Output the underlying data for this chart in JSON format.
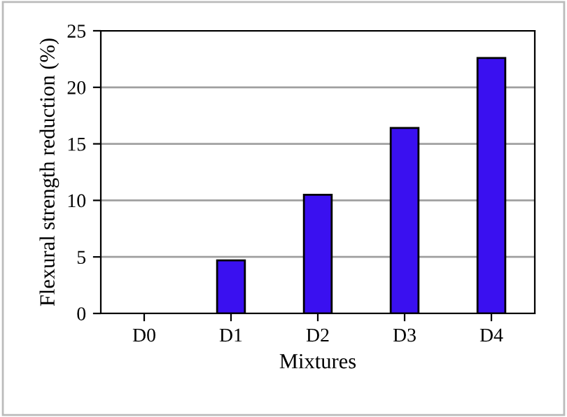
{
  "chart_data": {
    "type": "bar",
    "xlabel": "Mixtures",
    "ylabel": "Flexural strength reduction (%)",
    "categories": [
      "D0",
      "D1",
      "D2",
      "D3",
      "D4"
    ],
    "values": [
      0,
      4.7,
      10.5,
      16.4,
      22.6
    ],
    "color": "#3a10f0",
    "ylim": [
      0,
      25
    ],
    "yticks": [
      0,
      5,
      10,
      15,
      20,
      25
    ],
    "grid": "y"
  }
}
